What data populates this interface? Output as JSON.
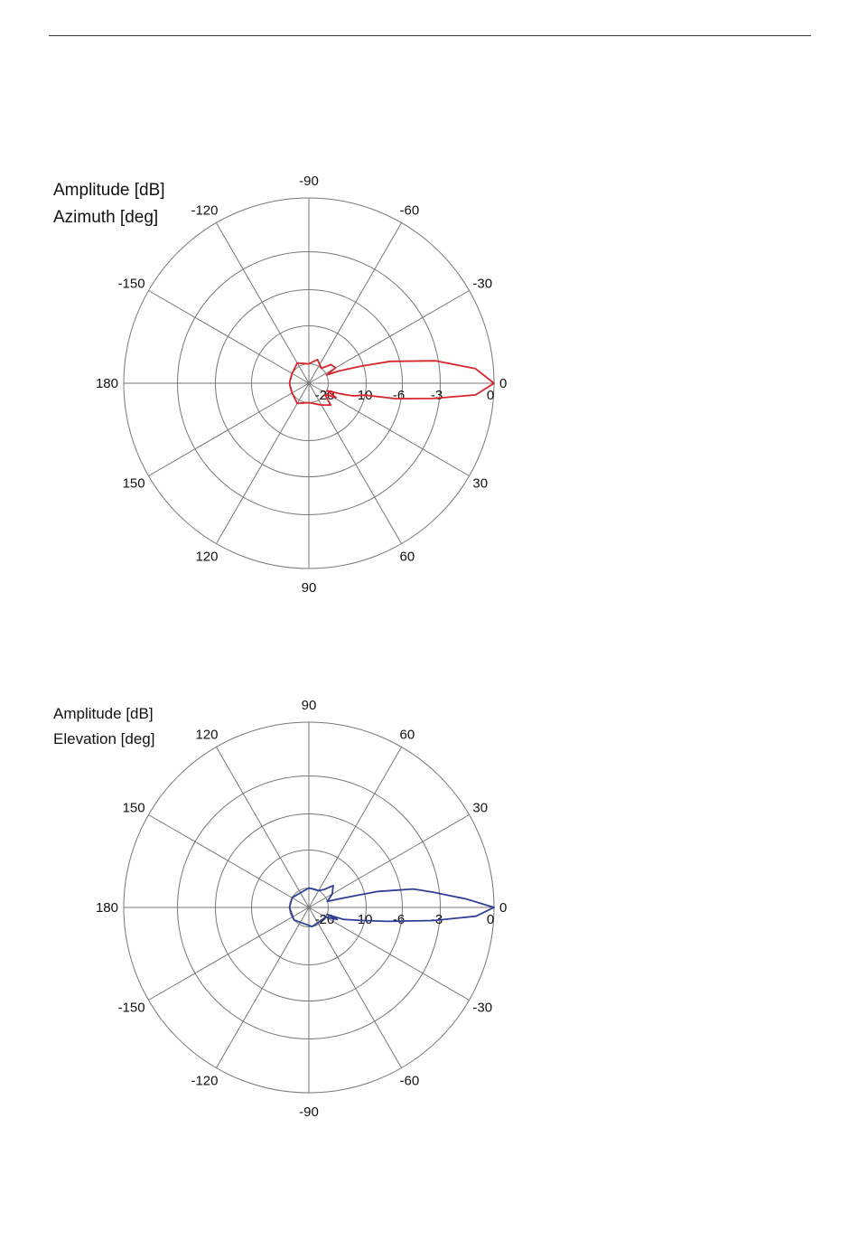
{
  "colors": {
    "azimuth_trace": "#d7262e",
    "elevation_trace": "#2e3f94",
    "grid": "#777777"
  },
  "chart_data": [
    {
      "type": "polar",
      "title_lines": [
        "Amplitude [dB]",
        "Azimuth [deg]"
      ],
      "angle_labels": [
        "0",
        "-30",
        "-60",
        "-90",
        "-120",
        "-150",
        "180",
        "150",
        "120",
        "90",
        "60",
        "30"
      ],
      "radial_labels": [
        "-20",
        "-10",
        "-6",
        "-3",
        "0"
      ],
      "rlim_db": [
        -20,
        0
      ],
      "series": [
        {
          "color": "#d7262e",
          "points_deg_db": [
            [
              0,
              0
            ],
            [
              5,
              -1
            ],
            [
              10,
              -3.2
            ],
            [
              15,
              -7
            ],
            [
              18,
              -10.5
            ],
            [
              22,
              -16.5
            ],
            [
              25,
              -20
            ],
            [
              30,
              -17
            ],
            [
              40,
              -17.5
            ],
            [
              50,
              -20
            ],
            [
              70,
              -18.5
            ],
            [
              90,
              -20
            ],
            [
              120,
              -19
            ],
            [
              150,
              -20
            ],
            [
              180,
              -20
            ],
            [
              210,
              -20
            ],
            [
              240,
              -19
            ],
            [
              270,
              -20
            ],
            [
              300,
              -18.5
            ],
            [
              315,
              -17
            ],
            [
              325,
              -20
            ],
            [
              332,
              -17
            ],
            [
              338,
              -20
            ],
            [
              341,
              -16.8
            ],
            [
              344,
              -13
            ],
            [
              348,
              -10
            ],
            [
              350,
              -6.5
            ],
            [
              353,
              -3.5
            ],
            [
              356,
              -1
            ],
            [
              360,
              0
            ]
          ]
        }
      ]
    },
    {
      "type": "polar",
      "title_lines": [
        "Amplitude [dB]",
        "Elevation [deg]"
      ],
      "angle_labels": [
        "0",
        "30",
        "60",
        "90",
        "120",
        "150",
        "180",
        "-150",
        "-120",
        "-90",
        "-60",
        "-30"
      ],
      "radial_labels": [
        "-20",
        "-10",
        "-6",
        "-3",
        "0"
      ],
      "rlim_db": [
        -20,
        0
      ],
      "series": [
        {
          "color": "#2e3f94",
          "points_deg_db": [
            [
              0,
              0
            ],
            [
              3,
              -1.5
            ],
            [
              7,
              -3.5
            ],
            [
              10,
              -5
            ],
            [
              13,
              -8.5
            ],
            [
              15,
              -15
            ],
            [
              18,
              -20
            ],
            [
              30,
              -18
            ],
            [
              42,
              -16.5
            ],
            [
              50,
              -19
            ],
            [
              60,
              -20
            ],
            [
              90,
              -20
            ],
            [
              150,
              -20
            ],
            [
              180,
              -20
            ],
            [
              220,
              -20
            ],
            [
              280,
              -20
            ],
            [
              330,
              -20
            ],
            [
              337,
              -17
            ],
            [
              339,
              -20
            ],
            [
              341,
              -15.5
            ],
            [
              346,
              -11
            ],
            [
              350,
              -7.5
            ],
            [
              354,
              -3.5
            ],
            [
              357,
              -1
            ],
            [
              360,
              0
            ]
          ]
        }
      ]
    }
  ]
}
